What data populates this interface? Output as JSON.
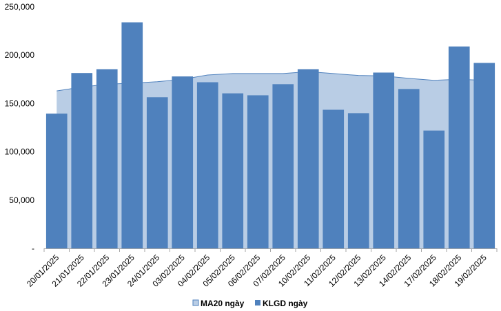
{
  "chart_data": {
    "type": "bar",
    "categories": [
      "20/01/2025",
      "21/01/2025",
      "22/01/2025",
      "23/01/2025",
      "24/01/2025",
      "03/02/2025",
      "04/02/2025",
      "05/02/2025",
      "06/02/2025",
      "07/02/2025",
      "10/02/2025",
      "11/02/2025",
      "12/02/2025",
      "13/02/2025",
      "14/02/2025",
      "17/02/2025",
      "18/02/2025",
      "19/02/2025"
    ],
    "series": [
      {
        "name": "MA20 ngày",
        "kind": "area",
        "color": "#b9cde5",
        "stroke": "#4f81bd",
        "values": [
          163000,
          167000,
          170000,
          171000,
          172500,
          175000,
          179500,
          181000,
          181000,
          181000,
          183000,
          181000,
          179000,
          178500,
          176000,
          174000,
          175000,
          174000
        ]
      },
      {
        "name": "KLGD ngày",
        "kind": "bar",
        "color": "#4f81bd",
        "values": [
          139500,
          181500,
          185500,
          234000,
          156500,
          178000,
          172000,
          160500,
          158500,
          170000,
          185500,
          143500,
          140000,
          182000,
          165000,
          122000,
          209000,
          192000
        ]
      }
    ],
    "y_ticks": [
      "-",
      "50,000",
      "100,000",
      "150,000",
      "200,000",
      "250,000"
    ],
    "y_tick_values": [
      0,
      50000,
      100000,
      150000,
      200000,
      250000
    ],
    "ylim": [
      0,
      250000
    ],
    "grid": false,
    "legend_position": "bottom"
  }
}
